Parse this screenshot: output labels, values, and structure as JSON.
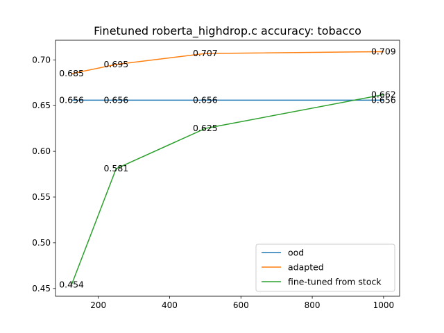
{
  "chart_data": {
    "type": "line",
    "title": "Finetuned roberta_highdrop.c accuracy: tobacco",
    "xlabel": "",
    "ylabel": "",
    "x": [
      125,
      250,
      500,
      1000
    ],
    "xlim": [
      80,
      1045
    ],
    "ylim": [
      0.4415,
      0.7215
    ],
    "xticks": [
      200,
      400,
      600,
      800,
      1000
    ],
    "yticks": [
      0.45,
      0.5,
      0.55,
      0.6,
      0.65,
      0.7
    ],
    "grid": false,
    "legend_position": "lower right",
    "series": [
      {
        "name": "ood",
        "color": "#1f77b4",
        "values": [
          0.656,
          0.656,
          0.656,
          0.656
        ],
        "labels": [
          "0.656",
          "0.656",
          "0.656",
          "0.656"
        ]
      },
      {
        "name": "adapted",
        "color": "#ff7f0e",
        "values": [
          0.685,
          0.695,
          0.707,
          0.709
        ],
        "labels": [
          "0.685",
          "0.695",
          "0.707",
          "0.709"
        ]
      },
      {
        "name": "fine-tuned from stock",
        "color": "#2ca02c",
        "values": [
          0.454,
          0.581,
          0.625,
          0.662
        ],
        "labels": [
          "0.454",
          "0.581",
          "0.625",
          "0.662"
        ]
      }
    ]
  }
}
